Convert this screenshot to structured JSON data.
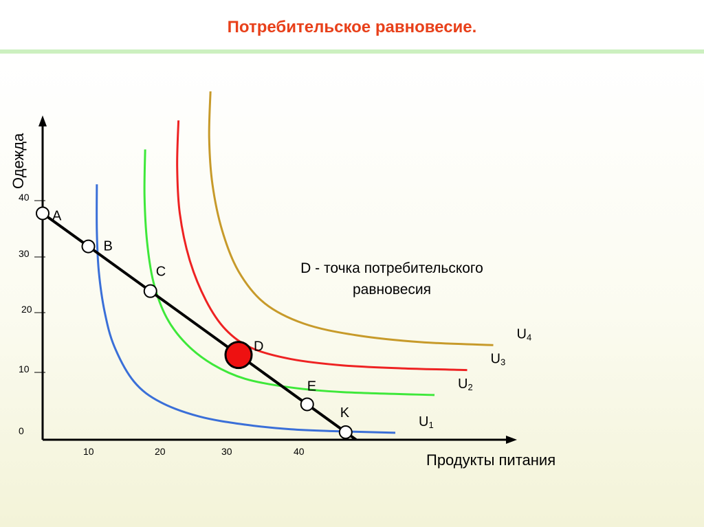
{
  "slide": {
    "title": "Потребительское равновесие."
  },
  "colors": {
    "title": "#e8401a",
    "U1": "#3a6fd8",
    "U2": "#3ee83a",
    "U3": "#ee2222",
    "U4": "#c79a2a",
    "budget_line": "#000000",
    "equilibrium_point": "#ee1111"
  },
  "chart_data": {
    "type": "line",
    "title": "",
    "xlabel": "Продукты питания",
    "ylabel": "Одежда",
    "x_ticks": [
      "10",
      "20",
      "30",
      "40"
    ],
    "y_ticks": [
      "0",
      "10",
      "20",
      "30",
      "40"
    ],
    "series": [
      {
        "name": "U1",
        "label_main": "U",
        "label_sub": "1",
        "color": "#3a6fd8",
        "points": [
          [
            8.3,
            44
          ],
          [
            8.3,
            36
          ],
          [
            8.6,
            29
          ],
          [
            9.5,
            22
          ],
          [
            11,
            16
          ],
          [
            14,
            10
          ],
          [
            18,
            6.5
          ],
          [
            24,
            4
          ],
          [
            31,
            2.6
          ],
          [
            38,
            1.8
          ],
          [
            44,
            1.5
          ],
          [
            54,
            1.2
          ]
        ]
      },
      {
        "name": "U2",
        "label_main": "U",
        "label_sub": "2",
        "color": "#3ee83a",
        "points": [
          [
            15.7,
            50
          ],
          [
            15.6,
            42
          ],
          [
            16,
            34
          ],
          [
            17,
            27
          ],
          [
            19,
            21
          ],
          [
            22,
            16.5
          ],
          [
            26,
            13
          ],
          [
            31,
            10.5
          ],
          [
            38,
            9
          ],
          [
            46,
            8.2
          ],
          [
            60,
            7.7
          ]
        ]
      },
      {
        "name": "U3",
        "label_main": "U",
        "label_sub": "3",
        "color": "#ee2222",
        "points": [
          [
            20.8,
            55
          ],
          [
            20.6,
            47
          ],
          [
            21,
            39
          ],
          [
            22.5,
            31
          ],
          [
            25,
            24
          ],
          [
            28,
            19
          ],
          [
            32,
            15.8
          ],
          [
            38,
            13.9
          ],
          [
            46,
            12.8
          ],
          [
            55,
            12.3
          ],
          [
            65,
            12
          ]
        ]
      },
      {
        "name": "U4",
        "label_main": "U",
        "label_sub": "4",
        "color": "#c79a2a",
        "points": [
          [
            25.7,
            60
          ],
          [
            25.5,
            52
          ],
          [
            26,
            44
          ],
          [
            27.5,
            36
          ],
          [
            30,
            29
          ],
          [
            34,
            23.5
          ],
          [
            40,
            20
          ],
          [
            48,
            18
          ],
          [
            58,
            16.8
          ],
          [
            69,
            16.3
          ]
        ]
      }
    ],
    "budget_line": {
      "from": [
        0,
        39
      ],
      "to": [
        48,
        0
      ],
      "color": "#000000"
    },
    "points": [
      {
        "label": "A",
        "x": 0,
        "y": 39,
        "equilibrium": false
      },
      {
        "label": "B",
        "x": 7,
        "y": 33.3,
        "equilibrium": false
      },
      {
        "label": "C",
        "x": 16.5,
        "y": 25.6,
        "equilibrium": false
      },
      {
        "label": "D",
        "x": 30,
        "y": 14.6,
        "equilibrium": true
      },
      {
        "label": "E",
        "x": 40.5,
        "y": 6.1,
        "equilibrium": false
      },
      {
        "label": "K",
        "x": 46.4,
        "y": 1.3,
        "equilibrium": false
      }
    ],
    "annotation": {
      "line1": "D  -  точка потребительского",
      "line2": "равновесия"
    },
    "grid": false,
    "legend": "curve labels at right end"
  }
}
